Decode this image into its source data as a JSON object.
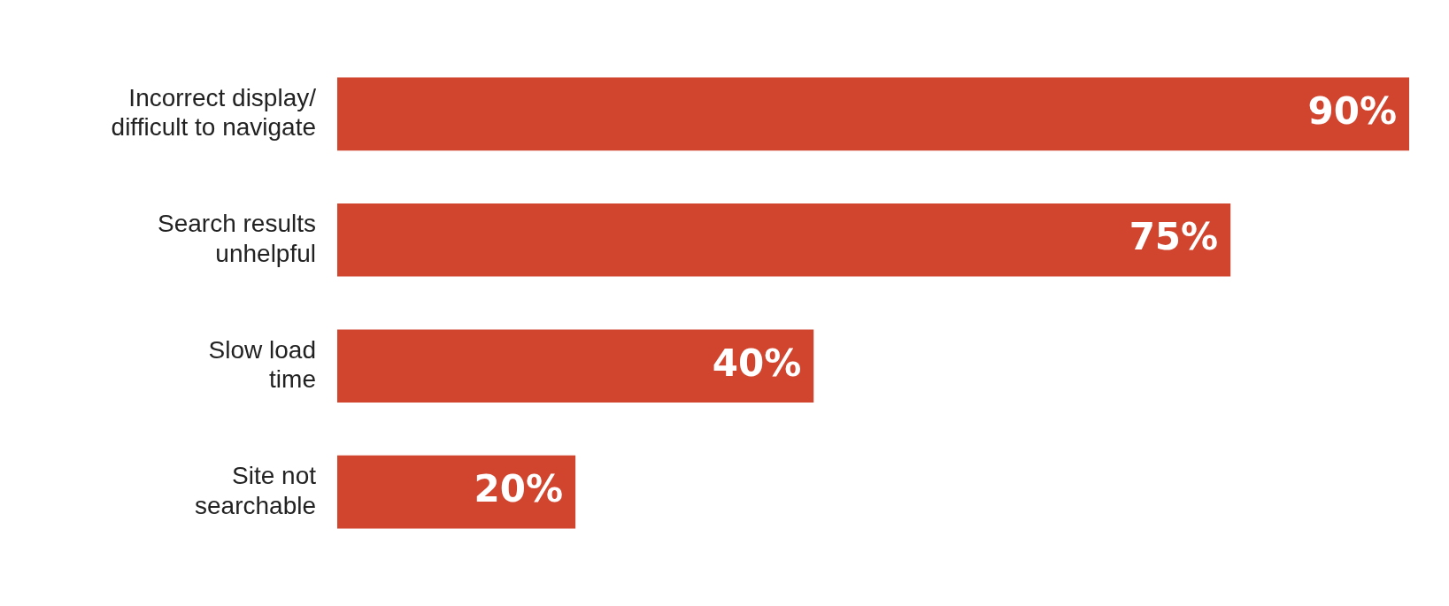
{
  "chart_data": {
    "type": "bar",
    "orientation": "horizontal",
    "categories": [
      "Incorrect display/\ndifficult to navigate",
      "Search results\nunhelpful",
      "Slow load\ntime",
      "Site not\nsearchable"
    ],
    "values": [
      90,
      75,
      40,
      20
    ],
    "value_labels": [
      "90%",
      "75%",
      "40%",
      "20%"
    ],
    "color": "#d1452f",
    "xlim": [
      0,
      90
    ],
    "tick_labels": "y",
    "grid": false,
    "legend": false
  }
}
